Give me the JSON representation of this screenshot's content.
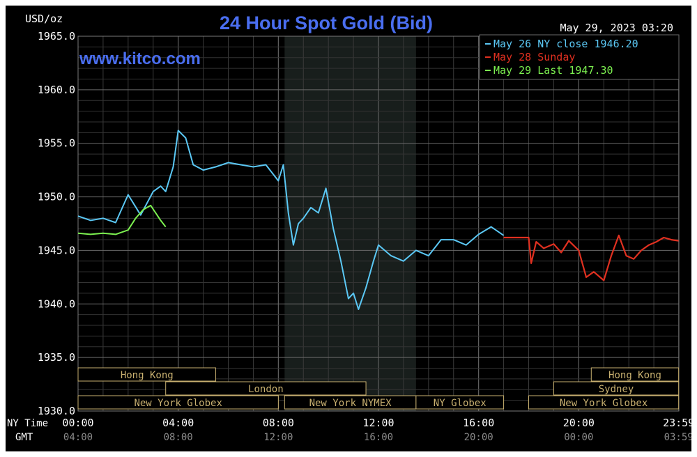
{
  "chart_data": {
    "type": "line",
    "title": "24 Hour Spot Gold (Bid)",
    "ylabel": "USD/oz",
    "ylim": [
      1930,
      1965
    ],
    "yticks": [
      "1965.0",
      "1960.0",
      "1955.0",
      "1950.0",
      "1945.0",
      "1940.0",
      "1935.0",
      "1930.0"
    ],
    "x_row_labels": {
      "ny": "NY Time",
      "gmt": "GMT"
    },
    "x_ticks_ny": [
      "00:00",
      "04:00",
      "08:00",
      "12:00",
      "16:00",
      "20:00",
      "23:59"
    ],
    "x_ticks_gmt": [
      "04:00",
      "08:00",
      "12:00",
      "16:00",
      "20:00",
      "00:00",
      "03:59"
    ],
    "date": "May 29, 2023 03:20",
    "watermark": "www.kitco.com",
    "legend": [
      {
        "label": "May 26 NY close 1946.20",
        "color": "#5bc8f5"
      },
      {
        "label": "May 28 Sunday",
        "color": "#e03020"
      },
      {
        "label": "May 29 Last 1947.30",
        "color": "#7cf050"
      }
    ],
    "sessions": [
      {
        "label": "Hong Kong",
        "start": 0,
        "end": 5.5,
        "row": 0
      },
      {
        "label": "Hong Kong",
        "start": 20.5,
        "end": 23.99,
        "row": 0
      },
      {
        "label": "London",
        "start": 3.5,
        "end": 11.5,
        "row": 1
      },
      {
        "label": "Sydney",
        "start": 19,
        "end": 23.99,
        "row": 1
      },
      {
        "label": "New York Globex",
        "start": 0,
        "end": 8,
        "row": 2
      },
      {
        "label": "New York NYMEX",
        "start": 8.25,
        "end": 13.5,
        "row": 2
      },
      {
        "label": "NY Globex",
        "start": 13.5,
        "end": 17,
        "row": 2
      },
      {
        "label": "New York Globex",
        "start": 18,
        "end": 23.99,
        "row": 2
      }
    ],
    "nymex_shade": {
      "start": 8.25,
      "end": 13.5
    },
    "series": [
      {
        "name": "May 26 NY close 1946.20",
        "color": "#5bc8f5",
        "x": [
          0,
          0.5,
          1,
          1.5,
          2,
          2.5,
          3,
          3.3,
          3.5,
          3.8,
          4,
          4.3,
          4.6,
          5,
          5.5,
          6,
          6.5,
          7,
          7.5,
          8,
          8.2,
          8.4,
          8.6,
          8.8,
          9,
          9.3,
          9.6,
          9.9,
          10.2,
          10.5,
          10.8,
          11,
          11.2,
          11.5,
          11.8,
          12,
          12.5,
          13,
          13.5,
          14,
          14.5,
          15,
          15.5,
          16,
          16.5,
          17
        ],
        "values": [
          1948.2,
          1947.8,
          1948.0,
          1947.6,
          1950.2,
          1948.3,
          1950.5,
          1951.0,
          1950.5,
          1952.8,
          1956.2,
          1955.5,
          1953.0,
          1952.5,
          1952.8,
          1953.2,
          1953.0,
          1952.8,
          1953.0,
          1951.5,
          1953.0,
          1948.5,
          1945.5,
          1947.5,
          1948.0,
          1949.0,
          1948.5,
          1950.8,
          1947.0,
          1944.0,
          1940.5,
          1941.0,
          1939.5,
          1941.5,
          1944.0,
          1945.5,
          1944.5,
          1944.0,
          1945.0,
          1944.5,
          1946.0,
          1946.0,
          1945.5,
          1946.5,
          1947.2,
          1946.4
        ]
      },
      {
        "name": "May 28 Sunday",
        "color": "#e03020",
        "x": [
          17,
          17.4,
          18,
          18.1,
          18.3,
          18.6,
          19,
          19.3,
          19.6,
          20,
          20.3,
          20.6,
          21,
          21.3,
          21.6,
          21.9,
          22.2,
          22.5,
          22.8,
          23.1,
          23.4,
          23.7,
          23.99
        ],
        "values": [
          1946.2,
          1946.2,
          1946.2,
          1943.8,
          1945.8,
          1945.2,
          1945.6,
          1944.8,
          1945.9,
          1945.0,
          1942.5,
          1943.0,
          1942.2,
          1944.5,
          1946.4,
          1944.5,
          1944.2,
          1945.0,
          1945.5,
          1945.8,
          1946.2,
          1946.0,
          1945.9
        ]
      },
      {
        "name": "May 29 Last 1947.30",
        "color": "#7cf050",
        "x": [
          0,
          0.5,
          1,
          1.5,
          2,
          2.3,
          2.6,
          2.9,
          3.1,
          3.3,
          3.5
        ],
        "values": [
          1946.6,
          1946.5,
          1946.6,
          1946.5,
          1946.9,
          1948.0,
          1948.8,
          1949.2,
          1948.5,
          1947.8,
          1947.2
        ]
      }
    ]
  }
}
